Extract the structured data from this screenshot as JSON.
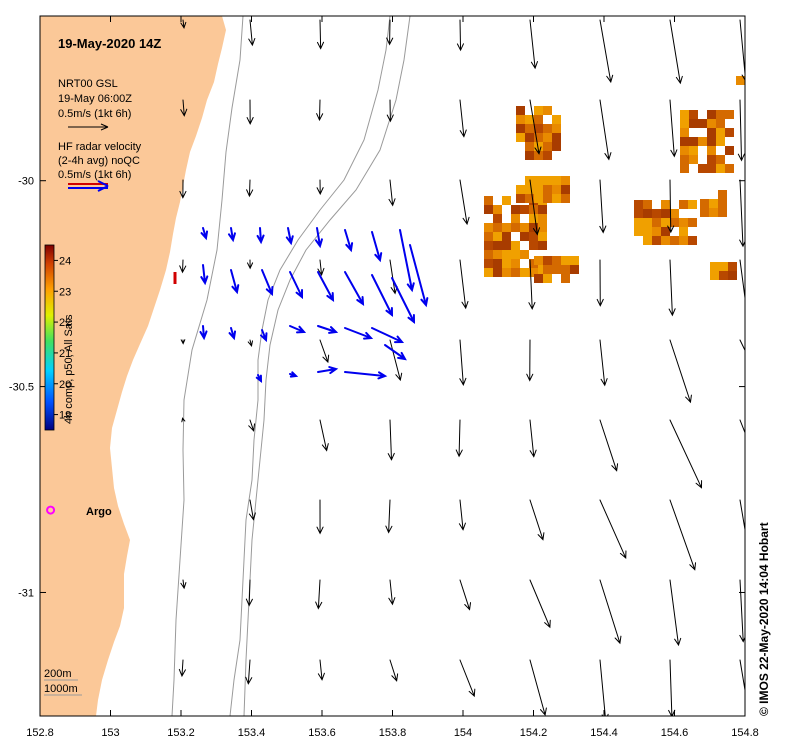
{
  "title": "19-May-2020 14Z",
  "colors": {
    "land": "#fbc898",
    "model_arrow": "#000000",
    "radar_arrow": "#0000ee",
    "radar_bad": "#d00000",
    "argo": "#ff00ff",
    "isobath": "#9a9a9a"
  },
  "model_legend": {
    "name": "NRT00 GSL",
    "time": "19-May 06:00Z",
    "scale": "0.5m/s (1kt 6h)"
  },
  "radar_legend": {
    "line1": "HF radar velocity",
    "line2": "(2-4h avg) noQC",
    "scale": "0.5m/s (1kt 6h)"
  },
  "colorbar": {
    "label": "4h comp, p50, All Sats",
    "min": 18.5,
    "max": 24.5,
    "ticks": [
      "24",
      "23",
      "22",
      "21",
      "20",
      "19"
    ]
  },
  "argo_label": "Argo",
  "isobath_labels": [
    "200m",
    "1000m"
  ],
  "credit": "© IMOS 22-May-2020 14:04 Hobart",
  "chart_data": {
    "type": "map",
    "xlim": [
      152.8,
      154.8
    ],
    "ylim": [
      -31.3,
      -29.6
    ],
    "x_ticks": [
      "152.8",
      "153",
      "153.2",
      "153.4",
      "153.6",
      "153.8",
      "154",
      "154.2",
      "154.4",
      "154.6",
      "154.8"
    ],
    "y_ticks": [
      {
        "value": -30,
        "label": "-30"
      },
      {
        "value": -30.5,
        "label": "-30.5"
      },
      {
        "value": -31,
        "label": "-31"
      }
    ],
    "argo_float": {
      "lon": 152.83,
      "lat": -30.8
    },
    "model_grid": {
      "lons": [
        153.2,
        153.4,
        153.6,
        153.8,
        154.0,
        154.2,
        154.4,
        154.6,
        154.8
      ],
      "lats": [
        -29.6,
        -29.8,
        -30.0,
        -30.2,
        -30.4,
        -30.6,
        -30.8,
        -31.0,
        -31.2
      ],
      "note": "arrows mostly south to south-south-east, strongest offshore"
    },
    "sst_range_degC": [
      18.5,
      24.5
    ]
  }
}
